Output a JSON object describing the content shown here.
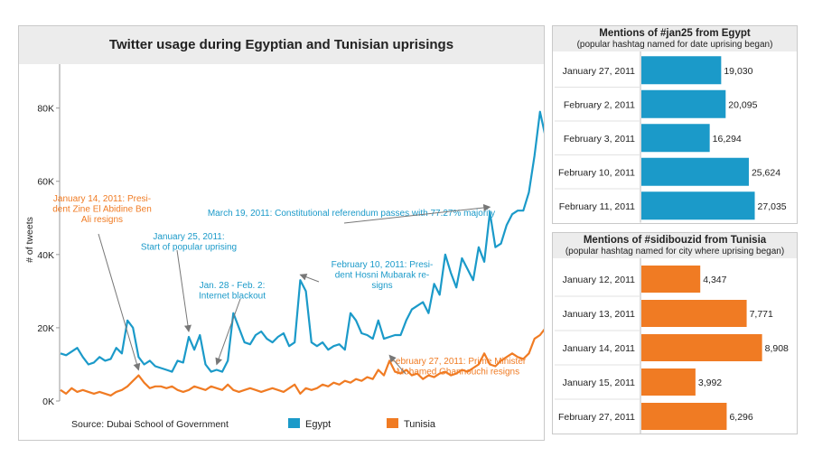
{
  "chart_data": [
    {
      "type": "line",
      "title": "Twitter usage during Egyptian and Tunisian uprisings",
      "ylabel": "# of tweets",
      "xlabel": "",
      "ylim": [
        0,
        92000
      ],
      "y_ticks": [
        0,
        20000,
        40000,
        60000,
        80000
      ],
      "y_tick_labels": [
        "0K",
        "20K",
        "40K",
        "60K",
        "80K"
      ],
      "grid": "none",
      "legend_placement": "bottom",
      "source": "Source: Dubai School of Government",
      "series": [
        {
          "name": "Egypt",
          "color": "#1b9ac9",
          "values": [
            13000,
            12500,
            13500,
            14500,
            12000,
            10000,
            10500,
            12000,
            11000,
            11500,
            14500,
            13000,
            22000,
            20000,
            12000,
            10000,
            11000,
            9500,
            9000,
            8500,
            8000,
            11000,
            10500,
            17500,
            14000,
            18000,
            10000,
            8000,
            8500,
            8000,
            11000,
            24000,
            20000,
            16000,
            15500,
            18000,
            19000,
            17000,
            16000,
            17500,
            18500,
            15000,
            16000,
            33000,
            30000,
            16000,
            15000,
            16000,
            14000,
            15000,
            15500,
            14000,
            24000,
            22000,
            18500,
            18000,
            17000,
            22000,
            17000,
            17500,
            18000,
            18000,
            22000,
            25000,
            26000,
            27000,
            24000,
            32000,
            29000,
            40000,
            35000,
            31000,
            39000,
            36000,
            33000,
            42000,
            38000,
            51500,
            42000,
            43000,
            48000,
            51000,
            52000,
            52000,
            57000,
            67000,
            79000,
            72000
          ]
        },
        {
          "name": "Tunisia",
          "color": "#f07b23",
          "values": [
            3000,
            2000,
            3500,
            2500,
            3000,
            2500,
            2000,
            2500,
            2000,
            1500,
            2500,
            3000,
            4000,
            5500,
            7000,
            5000,
            3500,
            4000,
            4000,
            3500,
            4000,
            3000,
            2500,
            3000,
            4000,
            3500,
            3000,
            4000,
            3500,
            3000,
            4500,
            3000,
            2500,
            3000,
            3500,
            3000,
            2500,
            3000,
            3500,
            3000,
            2500,
            3500,
            4500,
            2000,
            3500,
            3000,
            3500,
            4500,
            4000,
            5000,
            4500,
            5500,
            5000,
            6000,
            5500,
            6500,
            6000,
            8500,
            7000,
            11000,
            8000,
            7500,
            8500,
            7000,
            7500,
            6000,
            7000,
            6500,
            7500,
            8000,
            7000,
            7500,
            8500,
            8000,
            9000,
            10000,
            13000,
            10000,
            9500,
            11000,
            12000,
            13000,
            12000,
            11500,
            13000,
            17000,
            18000,
            20000
          ]
        }
      ],
      "annotations": [
        {
          "id": "ann-tunisia-jan14",
          "lines": [
            "January 14, 2011: Presi-",
            "dent Zine El Abidine Ben",
            "Ali resigns"
          ],
          "color": "#f07b23",
          "target_index": 14,
          "series": "Tunisia"
        },
        {
          "id": "ann-jan25",
          "lines": [
            "January 25, 2011:",
            "Start of popular uprising"
          ],
          "color": "#1b9ac9",
          "target_index": 23,
          "series": "Egypt"
        },
        {
          "id": "ann-blackout",
          "lines": [
            "Jan. 28 - Feb. 2:",
            "Internet blackout"
          ],
          "color": "#1b9ac9",
          "target_index": 28,
          "series": "Egypt"
        },
        {
          "id": "ann-mubarak",
          "lines": [
            "February 10, 2011: Presi-",
            "dent Hosni Mubarak re-",
            "signs"
          ],
          "color": "#1b9ac9",
          "target_index": 43,
          "series": "Egypt"
        },
        {
          "id": "ann-referendum",
          "lines": [
            "March 19, 2011: Constitutional referendum passes with 77.27% majority"
          ],
          "color": "#1b9ac9",
          "target_index": 77,
          "series": "Egypt"
        },
        {
          "id": "ann-ghannouchi",
          "lines": [
            "February 27, 2011: Prime Minister",
            "Mohamed Ghannouchi resigns"
          ],
          "color": "#f07b23",
          "target_index": 59,
          "series": "Tunisia"
        }
      ]
    },
    {
      "type": "bar",
      "orientation": "horizontal",
      "title": "Mentions of #jan25 from Egypt",
      "subtitle": "(popular hashtag named for date uprising began)",
      "color": "#1b9ac9",
      "categories": [
        "January 27, 2011",
        "February 2, 2011",
        "February 3, 2011",
        "February 10, 2011",
        "February 11, 2011"
      ],
      "values": [
        19030,
        20095,
        16294,
        25624,
        27035
      ],
      "value_labels": [
        "19,030",
        "20,095",
        "16,294",
        "25,624",
        "27,035"
      ],
      "xlim": [
        0,
        28000
      ]
    },
    {
      "type": "bar",
      "orientation": "horizontal",
      "title": "Mentions of #sidibouzid from Tunisia",
      "subtitle": "(popular hashtag named for city where uprising began)",
      "color": "#f07b23",
      "categories": [
        "January 12, 2011",
        "January 13, 2011",
        "January 14, 2011",
        "January 15, 2011",
        "February 27, 2011"
      ],
      "values": [
        4347,
        7771,
        8908,
        3992,
        6296
      ],
      "value_labels": [
        "4,347",
        "7,771",
        "8,908",
        "3,992",
        "6,296"
      ],
      "xlim": [
        0,
        9200
      ]
    }
  ]
}
